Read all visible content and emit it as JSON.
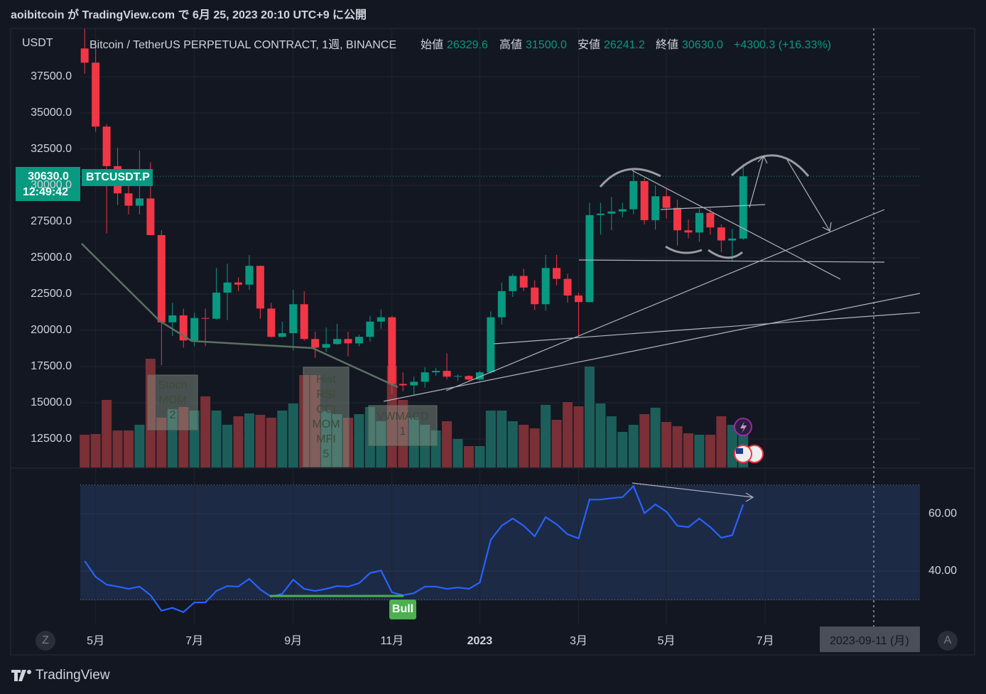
{
  "header": "aoibitcoin が TradingView.com で 6月 25, 2023 20:10 UTC+9 に公開",
  "footer": "TradingView",
  "scale_buttons": [
    "Z",
    "A"
  ],
  "cursor_date": "2023-09-11 (月)",
  "chart_data": [
    {
      "type": "candlestick",
      "title": "Bitcoin / TetherUS PERPETUAL CONTRACT, 1週, BINANCE",
      "y_unit": "USDT",
      "legend_items": [
        {
          "label": "始値",
          "value": "26329.6"
        },
        {
          "label": "高値",
          "value": "31500.0"
        },
        {
          "label": "安値",
          "value": "26241.2"
        },
        {
          "label": "終値",
          "value": "30630.0"
        }
      ],
      "change": "+4300.3 (+16.33%)",
      "price_tag": {
        "price": "30630.0",
        "countdown": "12:49:42",
        "symbol": "BTCUSDT.P"
      },
      "indicator_labels": [
        [
          "Stoch",
          "MOM",
          "2"
        ],
        [
          "Hist",
          "RSI",
          "CCI",
          "MOM",
          "MFI",
          "5"
        ],
        [
          "VWMACD",
          "1"
        ]
      ],
      "up_color": "#089981",
      "down_color": "#f23645",
      "open": [
        39450,
        38470,
        34060,
        31330,
        29450,
        28600,
        29100,
        26570,
        20550,
        21030,
        19300,
        20850,
        20800,
        22600,
        23300,
        23150,
        24450,
        21500,
        19550,
        19800,
        21800,
        19400,
        18800,
        19050,
        19400,
        19100,
        19550,
        20600,
        20900,
        16300,
        16200,
        16450,
        17100,
        17200,
        16800,
        16850,
        16600,
        17100,
        20900,
        22700,
        23750,
        22950,
        21800,
        24300,
        23550,
        22400,
        21950,
        27950,
        28050,
        28200,
        28350,
        30300,
        27600,
        29250,
        28450,
        26900,
        26750,
        28100,
        27100,
        26200,
        26329.6
      ],
      "high": [
        40800,
        40000,
        34230,
        32600,
        30400,
        32400,
        31600,
        26900,
        21900,
        21500,
        21200,
        21500,
        24300,
        24600,
        23650,
        25200,
        24450,
        21900,
        20600,
        22800,
        22700,
        19900,
        20200,
        20450,
        19900,
        19700,
        21000,
        21450,
        21000,
        17100,
        16800,
        17450,
        17400,
        18400,
        16950,
        16900,
        17200,
        21300,
        23300,
        23900,
        24250,
        23450,
        25200,
        25200,
        23900,
        22600,
        28800,
        28800,
        29200,
        28800,
        31000,
        30500,
        30000,
        29800,
        29000,
        27650,
        28400,
        28400,
        27300,
        27000,
        31500
      ],
      "low": [
        37700,
        33700,
        26700,
        28650,
        28000,
        28000,
        26550,
        17600,
        19600,
        18800,
        18900,
        18900,
        20750,
        20700,
        22700,
        22800,
        20800,
        19500,
        19500,
        18600,
        19300,
        18100,
        18500,
        19000,
        18200,
        18900,
        19200,
        20100,
        15600,
        15800,
        15500,
        16050,
        16850,
        16600,
        16500,
        16500,
        16500,
        17000,
        20400,
        22300,
        22700,
        21400,
        21350,
        23100,
        21900,
        19600,
        21900,
        26600,
        26900,
        27800,
        28000,
        27300,
        26950,
        27700,
        25850,
        26350,
        26100,
        26600,
        25400,
        24800,
        26241.2
      ],
      "close": [
        38470,
        34060,
        31330,
        29450,
        28600,
        29100,
        26570,
        20550,
        21030,
        19300,
        20850,
        20800,
        22600,
        23300,
        23150,
        24450,
        21500,
        19550,
        19800,
        21800,
        19400,
        18800,
        19050,
        19400,
        19100,
        19550,
        20600,
        20900,
        16300,
        16200,
        16450,
        17100,
        17200,
        16800,
        16850,
        16600,
        17100,
        20900,
        22700,
        23750,
        22950,
        21800,
        24300,
        23550,
        22400,
        21950,
        27950,
        28050,
        28200,
        28350,
        30300,
        27600,
        29250,
        28450,
        26900,
        26750,
        28100,
        27100,
        26200,
        26329.6,
        30630
      ],
      "volume": [
        46,
        47,
        95,
        52,
        52,
        60,
        153,
        70,
        82,
        85,
        80,
        100,
        80,
        60,
        72,
        76,
        74,
        70,
        80,
        90,
        130,
        130,
        80,
        75,
        70,
        75,
        85,
        65,
        143,
        95,
        70,
        60,
        52,
        65,
        40,
        30,
        30,
        80,
        80,
        65,
        60,
        55,
        88,
        67,
        92,
        86,
        142,
        90,
        72,
        50,
        60,
        75,
        84,
        64,
        58,
        48,
        46,
        46,
        72,
        60,
        65
      ],
      "last_price": 30630,
      "ylim": [
        10539,
        40833
      ],
      "yticks": [
        {
          "value": 37500,
          "label": "37500.0"
        },
        {
          "value": 35000,
          "label": "35000.0"
        },
        {
          "value": 32500,
          "label": "32500.0"
        },
        {
          "value": 30000,
          "label": "30000.0"
        },
        {
          "value": 27500,
          "label": "27500.0"
        },
        {
          "value": 25000,
          "label": "25000.0"
        },
        {
          "value": 22500,
          "label": "22500.0"
        },
        {
          "value": 20000,
          "label": "20000.0"
        },
        {
          "value": 17500,
          "label": "17500.0"
        },
        {
          "value": 15000,
          "label": "15000.0"
        },
        {
          "value": 12500,
          "label": "12500.0"
        }
      ],
      "xlim": [
        -0.4,
        76.1
      ],
      "xticks": [
        {
          "value": 1,
          "label": "5月"
        },
        {
          "value": 10,
          "label": "7月"
        },
        {
          "value": 19,
          "label": "9月"
        },
        {
          "value": 28,
          "label": "11月"
        },
        {
          "value": 36,
          "label": "2023"
        },
        {
          "value": 45,
          "label": "3月"
        },
        {
          "value": 53,
          "label": "5月"
        },
        {
          "value": 62,
          "label": "7月"
        }
      ],
      "grid": true
    },
    {
      "type": "line",
      "name": "RSI",
      "color": "#2962ff",
      "values": [
        43.5,
        38,
        35.3,
        34.6,
        33.8,
        34.6,
        31.6,
        26.2,
        27.2,
        25.7,
        29.1,
        29.1,
        33.1,
        34.8,
        34.6,
        37.3,
        33.6,
        31.1,
        32.1,
        37,
        33.8,
        33.1,
        33.8,
        34.8,
        34.6,
        35.8,
        39.3,
        40.2,
        32.6,
        31.6,
        32.3,
        34.6,
        34.6,
        33.8,
        34.3,
        33.8,
        36,
        50.9,
        55.8,
        58.3,
        55.8,
        52.1,
        58.8,
        56.3,
        52.8,
        51.4,
        64.9,
        64.9,
        65.4,
        65.7,
        69.6,
        60.2,
        63.2,
        60.7,
        55.8,
        55.3,
        58.3,
        55.3,
        51.6,
        52.5,
        63.2
      ],
      "band": [
        30,
        70
      ],
      "divergence_label": "Bull",
      "ylim": [
        21.2,
        75.6
      ],
      "yticks": [
        {
          "value": 60,
          "label": "60.00"
        },
        {
          "value": 40,
          "label": "40.00"
        }
      ]
    }
  ]
}
